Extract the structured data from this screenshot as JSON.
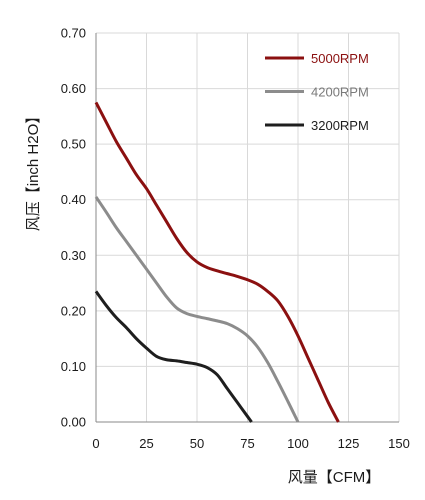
{
  "chart_data": {
    "type": "line",
    "title": "",
    "xlabel": "风量【CFM】",
    "ylabel": "风压【inch H2O】",
    "xlim": [
      0,
      150
    ],
    "ylim": [
      0,
      0.7
    ],
    "x_ticks": [
      0,
      25,
      50,
      75,
      100,
      125,
      150
    ],
    "x_tick_labels": [
      "0",
      "25",
      "50",
      "75",
      "100",
      "125",
      "150"
    ],
    "y_ticks": [
      0,
      0.1,
      0.2,
      0.3,
      0.4,
      0.5,
      0.6,
      0.7
    ],
    "y_tick_labels": [
      "0.00",
      "0.10",
      "0.20",
      "0.30",
      "0.40",
      "0.50",
      "0.60",
      "0.70"
    ],
    "grid": true,
    "legend_position": "top-right",
    "series": [
      {
        "name": "5000RPM",
        "color": "#8b1010",
        "label_color": "#8b1010",
        "x": [
          0,
          5,
          10,
          15,
          20,
          25,
          30,
          35,
          40,
          45,
          50,
          55,
          60,
          65,
          70,
          75,
          80,
          85,
          90,
          95,
          100,
          105,
          110,
          115,
          120
        ],
        "y": [
          0.575,
          0.54,
          0.505,
          0.475,
          0.445,
          0.42,
          0.39,
          0.36,
          0.33,
          0.305,
          0.288,
          0.278,
          0.272,
          0.267,
          0.262,
          0.256,
          0.248,
          0.235,
          0.218,
          0.19,
          0.155,
          0.115,
          0.075,
          0.035,
          0
        ]
      },
      {
        "name": "4200RPM",
        "color": "#8c8c8c",
        "label_color": "#7a7a7a",
        "x": [
          0,
          5,
          10,
          15,
          20,
          25,
          30,
          35,
          40,
          45,
          50,
          55,
          60,
          65,
          70,
          75,
          80,
          85,
          90,
          95,
          100
        ],
        "y": [
          0.405,
          0.378,
          0.35,
          0.325,
          0.3,
          0.275,
          0.25,
          0.225,
          0.205,
          0.195,
          0.19,
          0.186,
          0.182,
          0.177,
          0.168,
          0.155,
          0.135,
          0.107,
          0.073,
          0.037,
          0
        ]
      },
      {
        "name": "3200RPM",
        "color": "#1e1e1e",
        "label_color": "#1e1e1e",
        "x": [
          0,
          5,
          10,
          15,
          20,
          25,
          30,
          35,
          40,
          45,
          50,
          55,
          60,
          65,
          70,
          75,
          77
        ],
        "y": [
          0.235,
          0.21,
          0.188,
          0.17,
          0.15,
          0.133,
          0.118,
          0.112,
          0.11,
          0.107,
          0.104,
          0.098,
          0.085,
          0.06,
          0.035,
          0.01,
          0
        ]
      }
    ]
  }
}
